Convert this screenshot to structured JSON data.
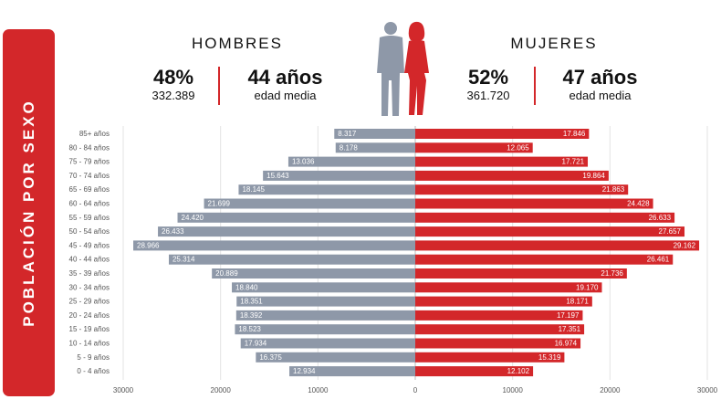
{
  "side_title": "POBLACIÓN POR SEXO",
  "hombres": {
    "title": "HOMBRES",
    "pct": "48%",
    "total": "332.389",
    "avg": "44 años",
    "avg_label": "edad media"
  },
  "mujeres": {
    "title": "MUJERES",
    "pct": "52%",
    "total": "361.720",
    "avg": "47 años",
    "avg_label": "edad media"
  },
  "colors": {
    "hombres": "#8e98a8",
    "mujeres": "#d3272a",
    "accent": "#d3272a"
  },
  "icons": {
    "silhouette": "man-and-woman-silhouette-icon"
  },
  "chart_data": {
    "type": "bar",
    "orientation": "horizontal-pyramid",
    "categories": [
      "85+ años",
      "80 - 84 años",
      "75 - 79 años",
      "70 - 74 años",
      "65 - 69 años",
      "60 - 64 años",
      "55 - 59 años",
      "50 - 54 años",
      "45 - 49 años",
      "40 - 44 años",
      "35 - 39 años",
      "30 - 34 años",
      "25 - 29 años",
      "20 - 24 años",
      "15 - 19 años",
      "10 - 14 años",
      "5 - 9 años",
      "0 - 4 años"
    ],
    "series": [
      {
        "name": "HOMBRES",
        "values": [
          8317,
          8178,
          13036,
          15643,
          18145,
          21699,
          24420,
          26433,
          28966,
          25314,
          20889,
          18840,
          18351,
          18392,
          18523,
          17934,
          16375,
          12934
        ],
        "labels": [
          "8.317",
          "8.178",
          "13.036",
          "15.643",
          "18.145",
          "21.699",
          "24.420",
          "26.433",
          "28.966",
          "25.314",
          "20.889",
          "18.840",
          "18.351",
          "18.392",
          "18.523",
          "17.934",
          "16.375",
          "12.934"
        ]
      },
      {
        "name": "MUJERES",
        "values": [
          17846,
          12065,
          17721,
          19864,
          21863,
          24428,
          26633,
          27657,
          29162,
          26461,
          21736,
          19170,
          18171,
          17197,
          17351,
          16974,
          15319,
          12102
        ],
        "labels": [
          "17.846",
          "12.065",
          "17.721",
          "19.864",
          "21.863",
          "24.428",
          "26.633",
          "27.657",
          "29.162",
          "26.461",
          "21.736",
          "19.170",
          "18.171",
          "17.197",
          "17.351",
          "16.974",
          "15.319",
          "12.102"
        ]
      }
    ],
    "xlim": [
      -30000,
      30000
    ],
    "x_ticks": [
      -30000,
      -20000,
      -10000,
      0,
      10000,
      20000,
      30000
    ],
    "x_tick_labels": [
      "30000",
      "20000",
      "10000",
      "0",
      "10000",
      "20000",
      "30000"
    ],
    "grid": true
  }
}
